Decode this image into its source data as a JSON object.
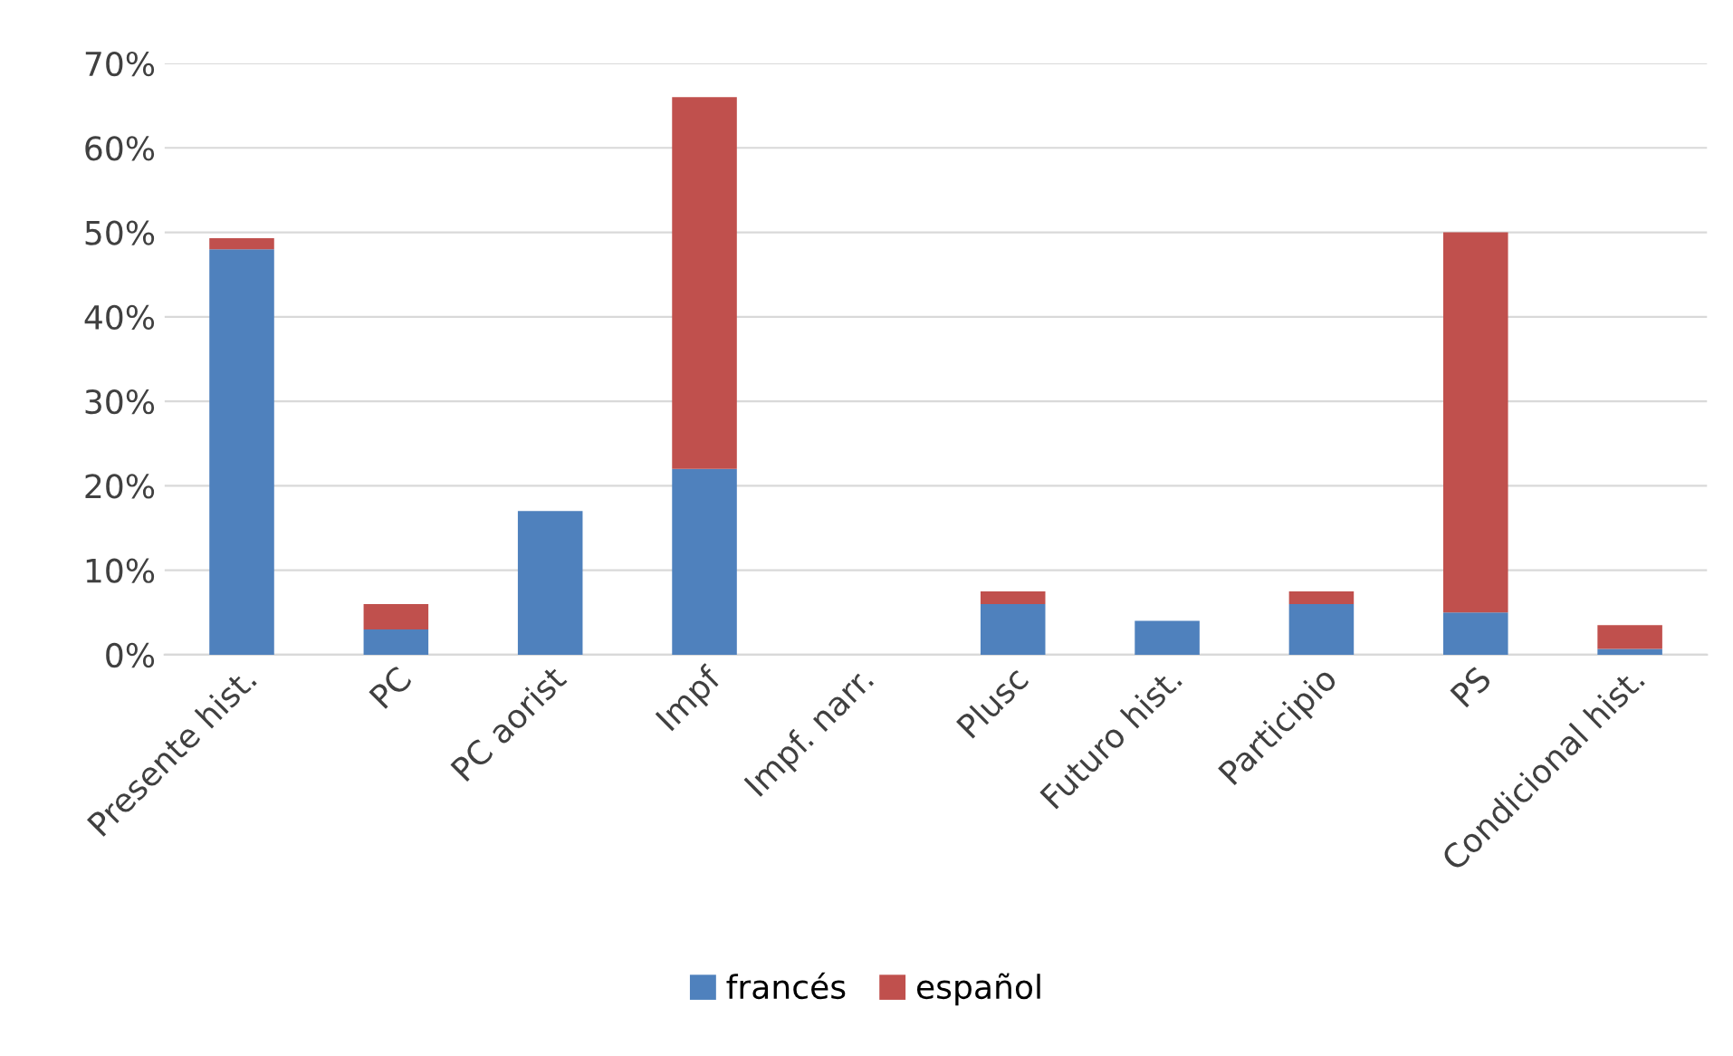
{
  "chart_data": {
    "type": "bar",
    "stacked": true,
    "categories": [
      "Presente hist.",
      "PC",
      "PC aorist",
      "Impf",
      "Impf. narr.",
      "Plusc",
      "Futuro hist.",
      "Participio",
      "PS",
      "Condicional hist."
    ],
    "series": [
      {
        "name": "francés",
        "color": "#4f81bd",
        "values": [
          48,
          3,
          17,
          22,
          0,
          6,
          4,
          6,
          5,
          0.7
        ]
      },
      {
        "name": "español",
        "color": "#c0504d",
        "values": [
          1.3,
          3,
          0,
          44,
          0,
          1.5,
          0,
          1.5,
          45,
          2.8
        ]
      }
    ],
    "ylim": [
      0,
      70
    ],
    "yticks": [
      {
        "value": 0,
        "label": "0%"
      },
      {
        "value": 10,
        "label": "10%"
      },
      {
        "value": 20,
        "label": "20%"
      },
      {
        "value": 30,
        "label": "30%"
      },
      {
        "value": 40,
        "label": "40%"
      },
      {
        "value": 50,
        "label": "50%"
      },
      {
        "value": 60,
        "label": "60%"
      },
      {
        "value": 70,
        "label": "70%"
      }
    ],
    "grid": "y",
    "legend": "bottom"
  }
}
